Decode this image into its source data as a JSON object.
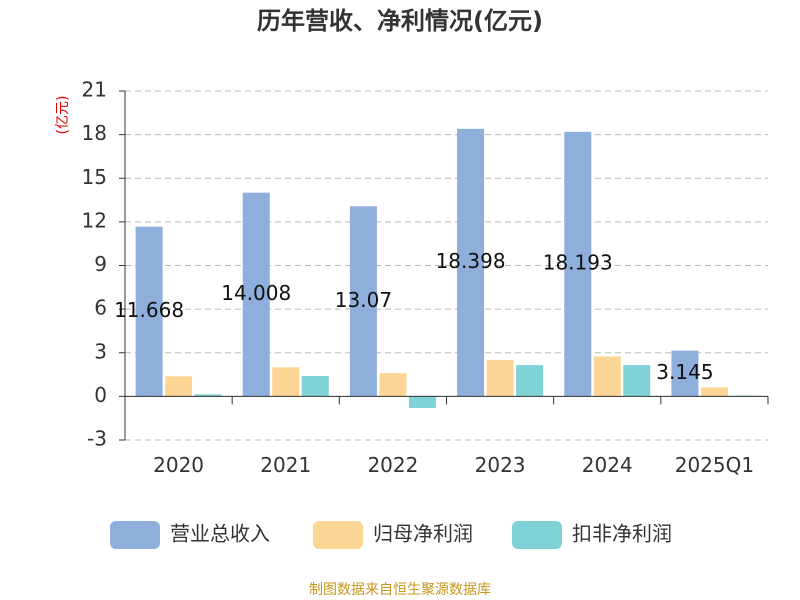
{
  "chart_data": {
    "type": "bar",
    "title": "历年营收、净利情况(亿元)",
    "y_label": "(亿元)",
    "categories": [
      "2020",
      "2021",
      "2022",
      "2023",
      "2024",
      "2025Q1"
    ],
    "series": [
      {
        "name": "营业总收入",
        "color": "#8eaedb",
        "values": [
          11.668,
          14.008,
          13.07,
          18.398,
          18.193,
          3.145
        ],
        "show_labels": true
      },
      {
        "name": "归母净利润",
        "color": "#fdd594",
        "values": [
          1.38,
          2.0,
          1.6,
          2.5,
          2.75,
          0.62
        ]
      },
      {
        "name": "扣非净利润",
        "color": "#7fd3d6",
        "values": [
          0.14,
          1.4,
          -0.8,
          2.15,
          2.15,
          0.05
        ]
      }
    ],
    "ylim": [
      -3,
      21
    ],
    "yticks": [
      -3,
      0,
      3,
      6,
      9,
      12,
      15,
      18,
      21
    ],
    "grid": true,
    "source": "制图数据来自恒生聚源数据库"
  }
}
